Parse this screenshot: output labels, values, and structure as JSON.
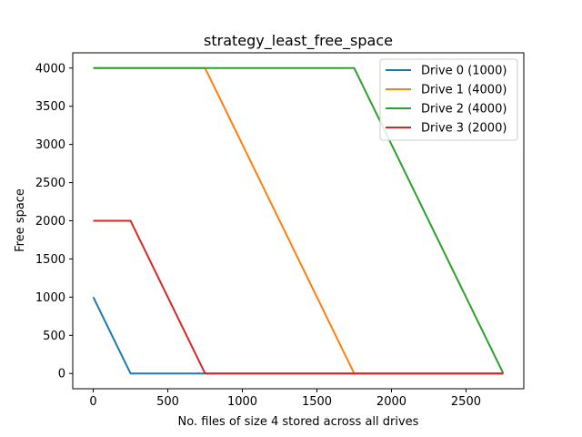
{
  "chart_data": {
    "type": "line",
    "title": "strategy_least_free_space",
    "xlabel": "No. files of size 4 stored across all drives",
    "ylabel": "Free space",
    "xlim": [
      -137.5,
      2887.5
    ],
    "ylim": [
      -200,
      4200
    ],
    "x_ticks": [
      0,
      500,
      1000,
      1500,
      2000,
      2500
    ],
    "y_ticks": [
      0,
      500,
      1000,
      1500,
      2000,
      2500,
      3000,
      3500,
      4000
    ],
    "grid": false,
    "legend_position": "top-right",
    "series": [
      {
        "name": "Drive 0 (1000)",
        "color": "#1f77b4",
        "x": [
          0,
          250,
          2750
        ],
        "y": [
          1000,
          0,
          0
        ]
      },
      {
        "name": "Drive 1 (4000)",
        "color": "#ff7f0e",
        "x": [
          0,
          750,
          1750,
          2750
        ],
        "y": [
          4000,
          4000,
          0,
          0
        ]
      },
      {
        "name": "Drive 2 (4000)",
        "color": "#2ca02c",
        "x": [
          0,
          1750,
          2750
        ],
        "y": [
          4000,
          4000,
          0
        ]
      },
      {
        "name": "Drive 3 (2000)",
        "color": "#d62728",
        "x": [
          0,
          250,
          750,
          2750
        ],
        "y": [
          2000,
          2000,
          0,
          0
        ]
      }
    ]
  }
}
